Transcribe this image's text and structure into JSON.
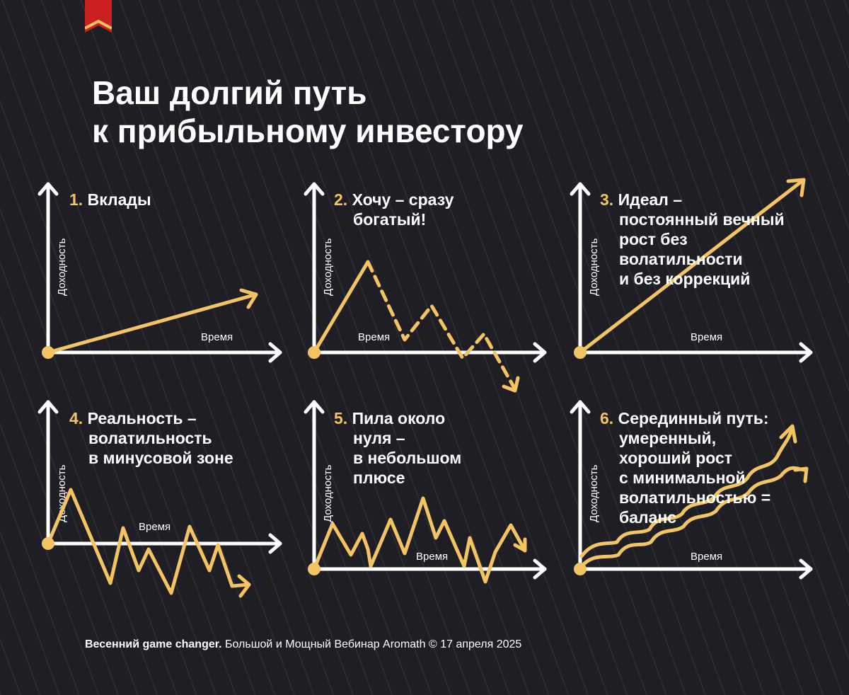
{
  "title": {
    "line1": "Ваш долгий путь",
    "line2": "к прибыльному инвестору"
  },
  "axes": {
    "y_label": "Доходность",
    "x_label": "Время"
  },
  "panels": [
    {
      "id": "deposits",
      "number": "1.",
      "lines": [
        "Вклады"
      ]
    },
    {
      "id": "rich-now",
      "number": "2.",
      "lines": [
        "Хочу – сразу",
        "богатый!"
      ]
    },
    {
      "id": "ideal",
      "number": "3.",
      "lines": [
        "Идеал –",
        "постоянный вечный",
        "рост без",
        "волатильности",
        "и без коррекций"
      ]
    },
    {
      "id": "reality",
      "number": "4.",
      "lines": [
        "Реальность –",
        "волатильность",
        "в минусовой зоне"
      ]
    },
    {
      "id": "saw",
      "number": "5.",
      "lines": [
        "Пила около",
        "нуля –",
        "в небольшом",
        "плюсе"
      ]
    },
    {
      "id": "middle-path",
      "number": "6.",
      "lines": [
        "Серединный путь:",
        "умеренный,",
        "хороший рост",
        "с минимальной",
        "волатильностью =",
        "баланс"
      ]
    }
  ],
  "footer": {
    "bold": "Весенний game changer.",
    "rest": " Большой и Мощный Вебинар Aromath © 17 апреля 2025"
  },
  "colors": {
    "background": "#1e1e24",
    "accent": "#f2c462",
    "axis": "#ffffff",
    "bookmark": "#cc1f1f"
  }
}
